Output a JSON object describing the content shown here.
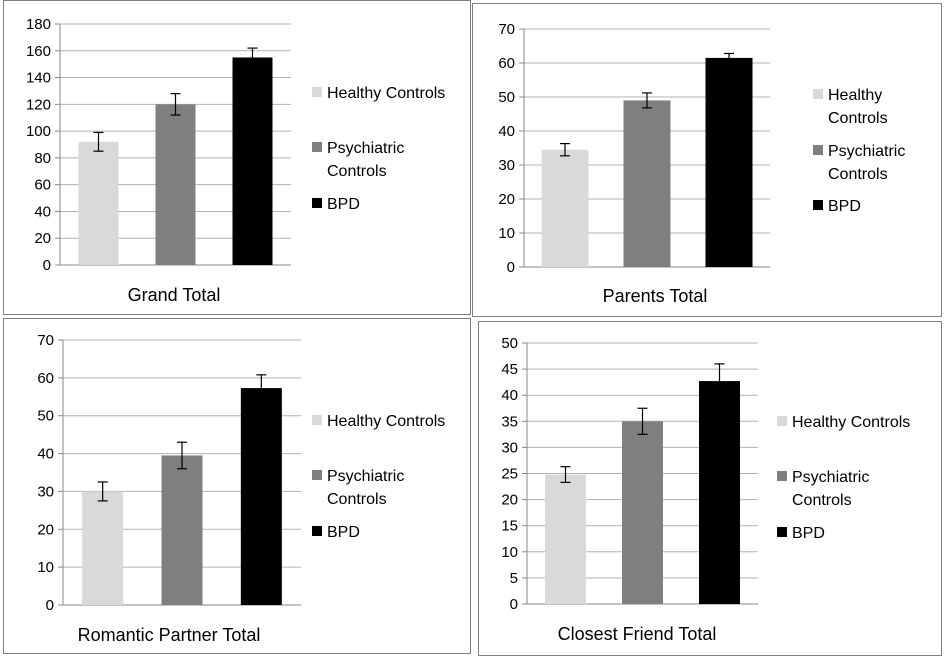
{
  "colors": {
    "healthy": "#d9d9d9",
    "psychiatric": "#7f7f7f",
    "bpd": "#000000",
    "grid": "#b3b3b3",
    "axis": "#888888",
    "error_bar": "#000000"
  },
  "chart_data": [
    {
      "type": "bar",
      "title": "Grand Total",
      "categories": [
        "Healthy Controls",
        "Psychiatric Controls",
        "BPD"
      ],
      "values": [
        92,
        120,
        155
      ],
      "errors": [
        7,
        8,
        7
      ],
      "ylim": [
        0,
        180
      ],
      "ystep": 20,
      "grid": true,
      "legend_position": "right",
      "legend_lines": [
        [
          "Healthy Controls"
        ],
        [
          "Psychiatric",
          "Controls"
        ],
        [
          "BPD"
        ]
      ]
    },
    {
      "type": "bar",
      "title": "Parents Total",
      "categories": [
        "Healthy Controls",
        "Psychiatric Controls",
        "BPD"
      ],
      "values": [
        34.5,
        49,
        61.5
      ],
      "errors": [
        1.8,
        2.2,
        1.3
      ],
      "ylim": [
        0,
        70
      ],
      "ystep": 10,
      "grid": true,
      "legend_position": "right",
      "legend_lines": [
        [
          "Healthy",
          "Controls"
        ],
        [
          "Psychiatric",
          "Controls"
        ],
        [
          "BPD"
        ]
      ]
    },
    {
      "type": "bar",
      "title": "Romantic Partner Total",
      "categories": [
        "Healthy Controls",
        "Psychiatric Controls",
        "BPD"
      ],
      "values": [
        30,
        39.5,
        57.3
      ],
      "errors": [
        2.5,
        3.5,
        3.5
      ],
      "ylim": [
        0,
        70
      ],
      "ystep": 10,
      "grid": true,
      "legend_position": "right",
      "legend_lines": [
        [
          "Healthy Controls"
        ],
        [
          "Psychiatric",
          "Controls"
        ],
        [
          "BPD"
        ]
      ]
    },
    {
      "type": "bar",
      "title": "Closest Friend Total",
      "categories": [
        "Healthy Controls",
        "Psychiatric Controls",
        "BPD"
      ],
      "values": [
        24.8,
        35,
        42.7
      ],
      "errors": [
        1.5,
        2.5,
        3.3
      ],
      "ylim": [
        0,
        50
      ],
      "ystep": 5,
      "grid": true,
      "legend_position": "right",
      "legend_lines": [
        [
          "Healthy Controls"
        ],
        [
          "Psychiatric",
          "Controls"
        ],
        [
          "BPD"
        ]
      ]
    }
  ]
}
